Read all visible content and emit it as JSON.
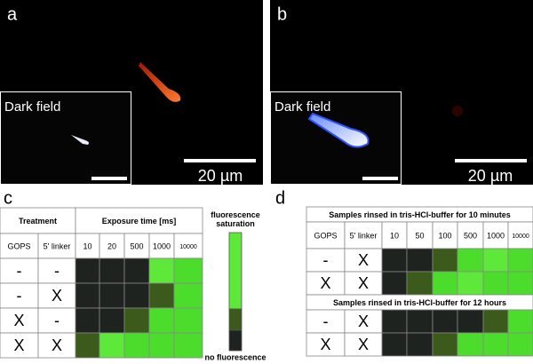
{
  "panels": [
    {
      "label": "a",
      "inset_label": "Dark field",
      "scale": "20 µm"
    },
    {
      "label": "b",
      "inset_label": "Dark field",
      "scale": "20 µm"
    }
  ],
  "table_c": {
    "label": "c",
    "header": [
      "Treatment",
      "Exposure time [ms]"
    ],
    "columns": [
      "GOPS",
      "5' linker",
      10,
      20,
      500,
      1000,
      10000
    ],
    "rows": [
      {
        "cells": [
          "-",
          "-"
        ],
        "colors": [
          "#1e2320",
          "#1e2320",
          "#1e2320",
          "#5ee83a",
          "#4cdc2c"
        ]
      },
      {
        "cells": [
          "-",
          "X"
        ],
        "colors": [
          "#1e2320",
          "#1e2320",
          "#1e2320",
          "#3c5a1c",
          "#4cdc2c"
        ]
      },
      {
        "cells": [
          "X",
          "-"
        ],
        "colors": [
          "#1e2320",
          "#1e2320",
          "#3c5a1c",
          "#4cdc2c",
          "#4cdc2c"
        ]
      },
      {
        "cells": [
          "X",
          "X"
        ],
        "colors": [
          "#3c5a1c",
          "#5ee83a",
          "#4cdc2c",
          "#4cdc2c",
          "#4cdc2c"
        ]
      }
    ]
  },
  "legend": {
    "top": "fluorescence saturation",
    "bottom": "no fluorescence",
    "colors": [
      "#5ee83a",
      "#3c5a1c",
      "#1e2320"
    ]
  },
  "table_d": {
    "label": "d",
    "columns": [
      "GOPS",
      "5' linker",
      10,
      50,
      100,
      500,
      1000,
      10000
    ],
    "sections": [
      {
        "title": "Samples rinsed in tris-HCl-buffer for 10 minutes",
        "rows": [
          {
            "cells": [
              "-",
              "X"
            ],
            "colors": [
              "#1e2320",
              "#1e2320",
              "#3c5a1c",
              "#4cdc2c",
              "#5ee83a",
              "#4cdc2c"
            ]
          },
          {
            "cells": [
              "X",
              "X"
            ],
            "colors": [
              "#1e2320",
              "#3c5a1c",
              "#4cdc2c",
              "#5ee83a",
              "#4cdc2c",
              "#4cdc2c"
            ]
          }
        ]
      },
      {
        "title": "Samples rinsed in tris-HCl-buffer for 12 hours",
        "rows": [
          {
            "cells": [
              "-",
              "X"
            ],
            "colors": [
              "#1e2320",
              "#1e2320",
              "#1e2320",
              "#1e2320",
              "#3c5a1c",
              "#4cdc2c"
            ]
          },
          {
            "cells": [
              "X",
              "X"
            ],
            "colors": [
              "#1e2320",
              "#1e2320",
              "#3c5a1c",
              "#4cdc2c",
              "#4cdc2c",
              "#4cdc2c"
            ]
          }
        ]
      }
    ]
  }
}
